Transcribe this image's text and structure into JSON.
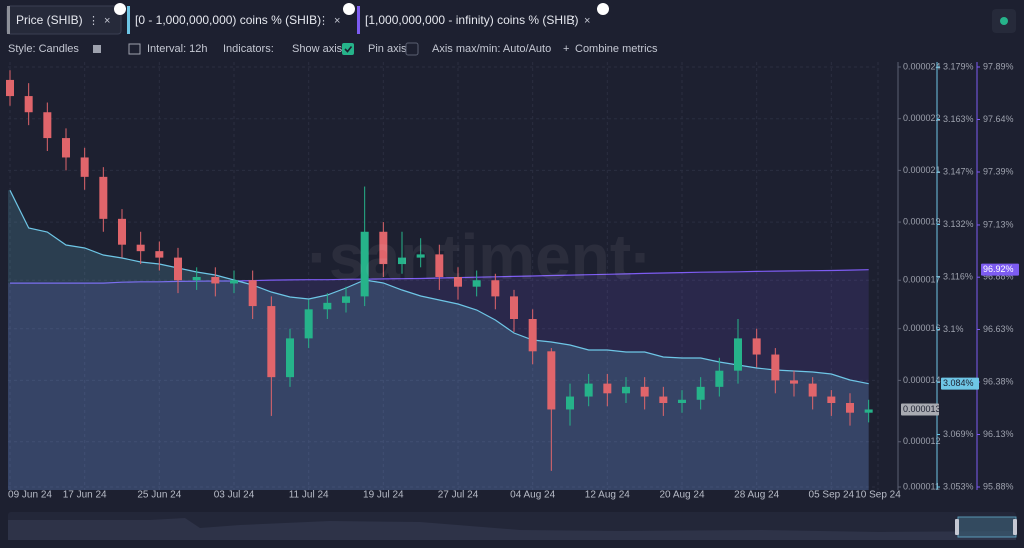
{
  "tabs_close": "×",
  "toolbar": {
    "style": "Style: Candles",
    "interval": "Interval: 12h",
    "indicators": "Indicators:",
    "show_axis": "Show axis",
    "pin_axis": "Pin axis",
    "axis_minmax": "Axis max/min: Auto/Auto",
    "combine": "Combine metrics"
  },
  "watermark": "·santiment·",
  "chart_data": {
    "type": "candlestick",
    "grid": true,
    "x": [
      "2024-06-09",
      "2024-06-11",
      "2024-06-13",
      "2024-06-15",
      "2024-06-17",
      "2024-06-19",
      "2024-06-21",
      "2024-06-23",
      "2024-06-25",
      "2024-06-27",
      "2024-06-29",
      "2024-07-01",
      "2024-07-03",
      "2024-07-05",
      "2024-07-07",
      "2024-07-09",
      "2024-07-11",
      "2024-07-13",
      "2024-07-15",
      "2024-07-17",
      "2024-07-19",
      "2024-07-21",
      "2024-07-23",
      "2024-07-25",
      "2024-07-27",
      "2024-07-29",
      "2024-07-31",
      "2024-08-02",
      "2024-08-04",
      "2024-08-06",
      "2024-08-08",
      "2024-08-10",
      "2024-08-12",
      "2024-08-14",
      "2024-08-16",
      "2024-08-18",
      "2024-08-20",
      "2024-08-22",
      "2024-08-24",
      "2024-08-26",
      "2024-08-28",
      "2024-08-30",
      "2024-09-01",
      "2024-09-03",
      "2024-09-05",
      "2024-09-07",
      "2024-09-09"
    ],
    "xlim": [
      "2024-06-09",
      "2024-09-10"
    ],
    "xticks": [
      {
        "value": "2024-06-09",
        "label": "09 Jun 24"
      },
      {
        "value": "2024-06-17",
        "label": "17 Jun 24"
      },
      {
        "value": "2024-06-25",
        "label": "25 Jun 24"
      },
      {
        "value": "2024-07-03",
        "label": "03 Jul 24"
      },
      {
        "value": "2024-07-11",
        "label": "11 Jul 24"
      },
      {
        "value": "2024-07-19",
        "label": "19 Jul 24"
      },
      {
        "value": "2024-07-27",
        "label": "27 Jul 24"
      },
      {
        "value": "2024-08-04",
        "label": "04 Aug 24"
      },
      {
        "value": "2024-08-12",
        "label": "12 Aug 24"
      },
      {
        "value": "2024-08-20",
        "label": "20 Aug 24"
      },
      {
        "value": "2024-08-28",
        "label": "28 Aug 24"
      },
      {
        "value": "2024-09-05",
        "label": "05 Sep 24"
      },
      {
        "value": "2024-09-10",
        "label": "10 Sep 24"
      }
    ],
    "ylim": [
      1.1e-05,
      2.4e-05
    ],
    "yticks": [
      2.4e-05,
      {
        "value": 2.24e-05,
        "label": "0.000022"
      },
      {
        "value": 2.08e-05,
        "label": "0.000021"
      },
      {
        "value": 1.92e-05,
        "label": "0.000019"
      },
      {
        "value": 1.74e-05,
        "label": "0.000017"
      },
      {
        "value": 1.59e-05,
        "label": "0.000016"
      },
      {
        "value": 1.43e-05,
        "label": "0.000014"
      },
      {
        "value": 1.24e-05,
        "label": "0.000012"
      },
      1.1e-05
    ],
    "y2lim": [
      3.053,
      3.179
    ],
    "y2ticks": [
      {
        "value": 3.179,
        "label": "3.179%"
      },
      {
        "value": 3.16325,
        "label": "3.163%"
      },
      {
        "value": 3.1475,
        "label": "3.147%"
      },
      {
        "value": 3.13175,
        "label": "3.132%"
      },
      {
        "value": 3.116,
        "label": "3.116%"
      },
      {
        "value": 3.10025,
        "label": "3.1%"
      },
      {
        "value": 3.0844,
        "label": "3.084%"
      },
      {
        "value": 3.06875,
        "label": "3.069%"
      },
      {
        "value": 3.053,
        "label": "3.053%"
      }
    ],
    "y3lim": [
      95.88,
      97.89
    ],
    "y3ticks": [
      {
        "value": 97.89,
        "label": "97.89%"
      },
      {
        "value": 97.63875,
        "label": "97.64%"
      },
      {
        "value": 97.3875,
        "label": "97.39%"
      },
      {
        "value": 97.134,
        "label": "97.13%"
      },
      {
        "value": 96.884,
        "label": "96.88%"
      },
      {
        "value": 96.63375,
        "label": "96.63%"
      },
      {
        "value": 96.3825,
        "label": "96.38%"
      },
      {
        "value": 96.13125,
        "label": "96.13%"
      },
      {
        "value": 95.88,
        "label": "95.88%"
      }
    ],
    "series": [
      {
        "name": "Price (SHIB)",
        "type": "candlestick",
        "color": "#8d9099",
        "up_color": "#26b38a",
        "down_color": "#e0656b",
        "open": [
          2.36e-05,
          2.31e-05,
          2.26e-05,
          2.18e-05,
          2.12e-05,
          2.06e-05,
          1.93e-05,
          1.85e-05,
          1.83e-05,
          1.81e-05,
          1.74e-05,
          1.75e-05,
          1.73e-05,
          1.74e-05,
          1.66e-05,
          1.44e-05,
          1.56e-05,
          1.65e-05,
          1.67e-05,
          1.69e-05,
          1.89e-05,
          1.79e-05,
          1.81e-05,
          1.82e-05,
          1.75e-05,
          1.72e-05,
          1.74e-05,
          1.69e-05,
          1.62e-05,
          1.52e-05,
          1.34e-05,
          1.38e-05,
          1.42e-05,
          1.39e-05,
          1.41e-05,
          1.38e-05,
          1.36e-05,
          1.37e-05,
          1.41e-05,
          1.46e-05,
          1.56e-05,
          1.51e-05,
          1.43e-05,
          1.42e-05,
          1.38e-05,
          1.36e-05,
          1.33e-05
        ],
        "high": [
          2.39e-05,
          2.35e-05,
          2.29e-05,
          2.21e-05,
          2.15e-05,
          2.09e-05,
          1.96e-05,
          1.89e-05,
          1.86e-05,
          1.84e-05,
          1.78e-05,
          1.78e-05,
          1.77e-05,
          1.77e-05,
          1.69e-05,
          1.59e-05,
          1.68e-05,
          1.7e-05,
          1.72e-05,
          2.03e-05,
          1.92e-05,
          1.89e-05,
          1.87e-05,
          1.85e-05,
          1.78e-05,
          1.77e-05,
          1.76e-05,
          1.71e-05,
          1.65e-05,
          1.53e-05,
          1.42e-05,
          1.45e-05,
          1.45e-05,
          1.44e-05,
          1.44e-05,
          1.41e-05,
          1.4e-05,
          1.44e-05,
          1.5e-05,
          1.62e-05,
          1.59e-05,
          1.53e-05,
          1.46e-05,
          1.44e-05,
          1.4e-05,
          1.39e-05,
          1.37e-05
        ],
        "low": [
          2.28e-05,
          2.22e-05,
          2.14e-05,
          2.08e-05,
          2.02e-05,
          1.89e-05,
          1.81e-05,
          1.79e-05,
          1.77e-05,
          1.7e-05,
          1.71e-05,
          1.69e-05,
          1.7e-05,
          1.62e-05,
          1.32e-05,
          1.41e-05,
          1.53e-05,
          1.62e-05,
          1.64e-05,
          1.66e-05,
          1.75e-05,
          1.76e-05,
          1.78e-05,
          1.71e-05,
          1.68e-05,
          1.69e-05,
          1.65e-05,
          1.58e-05,
          1.48e-05,
          1.15e-05,
          1.29e-05,
          1.35e-05,
          1.35e-05,
          1.36e-05,
          1.34e-05,
          1.32e-05,
          1.33e-05,
          1.34e-05,
          1.38e-05,
          1.42e-05,
          1.47e-05,
          1.39e-05,
          1.38e-05,
          1.34e-05,
          1.32e-05,
          1.29e-05,
          1.3e-05
        ],
        "close": [
          2.31e-05,
          2.26e-05,
          2.18e-05,
          2.12e-05,
          2.06e-05,
          1.93e-05,
          1.85e-05,
          1.83e-05,
          1.81e-05,
          1.74e-05,
          1.75e-05,
          1.73e-05,
          1.74e-05,
          1.66e-05,
          1.44e-05,
          1.56e-05,
          1.65e-05,
          1.67e-05,
          1.69e-05,
          1.89e-05,
          1.79e-05,
          1.81e-05,
          1.82e-05,
          1.75e-05,
          1.72e-05,
          1.74e-05,
          1.69e-05,
          1.62e-05,
          1.52e-05,
          1.34e-05,
          1.38e-05,
          1.42e-05,
          1.39e-05,
          1.41e-05,
          1.38e-05,
          1.36e-05,
          1.37e-05,
          1.41e-05,
          1.46e-05,
          1.56e-05,
          1.51e-05,
          1.43e-05,
          1.42e-05,
          1.38e-05,
          1.36e-05,
          1.33e-05,
          1.34e-05
        ],
        "value_labels": [
          null,
          null,
          null,
          null,
          null,
          null,
          null,
          null,
          null,
          null,
          null,
          null,
          null,
          null,
          null,
          null,
          null,
          null,
          null,
          null,
          null,
          null,
          null,
          null,
          null,
          null,
          null,
          null,
          null,
          null,
          null,
          null,
          null,
          null,
          null,
          null,
          null,
          null,
          null,
          null,
          null,
          null,
          null,
          null,
          null,
          null,
          "0.000013"
        ]
      },
      {
        "name": "[0 - 1,000,000,000) coins % (SHIB)",
        "type": "line",
        "axis": "y2",
        "fill": true,
        "color": "#6ec6e6",
        "values": [
          3.142,
          3.1307,
          3.1295,
          3.1256,
          3.1247,
          3.1226,
          3.1217,
          3.1205,
          3.1199,
          3.1187,
          3.1175,
          3.1166,
          3.1151,
          3.1136,
          3.1115,
          3.11,
          3.1094,
          3.1106,
          3.1127,
          3.1151,
          3.1142,
          3.1121,
          3.1103,
          3.1091,
          3.1079,
          3.1061,
          3.1031,
          3.0992,
          3.0971,
          3.0965,
          3.0956,
          3.0941,
          3.0941,
          3.0935,
          3.0935,
          3.092,
          3.0917,
          3.0917,
          3.0905,
          3.0896,
          3.0887,
          3.0881,
          3.0878,
          3.0875,
          3.0869,
          3.0851,
          3.084
        ],
        "value_labels": [
          null,
          null,
          null,
          null,
          null,
          null,
          null,
          null,
          null,
          null,
          null,
          null,
          null,
          null,
          null,
          null,
          null,
          null,
          null,
          null,
          null,
          null,
          null,
          null,
          null,
          null,
          null,
          null,
          null,
          null,
          null,
          null,
          null,
          null,
          null,
          null,
          null,
          null,
          null,
          null,
          null,
          null,
          null,
          null,
          null,
          null,
          "3.084%"
        ]
      },
      {
        "name": "[1,000,000,000 - infinity) coins % (SHIB)",
        "type": "line",
        "axis": "y3",
        "fill": true,
        "color": "#7d5cf2",
        "values": [
          96.856,
          96.856,
          96.856,
          96.856,
          96.856,
          96.856,
          96.86,
          96.862,
          96.862,
          96.864,
          96.865,
          96.866,
          96.866,
          96.868,
          96.87,
          96.871,
          96.872,
          96.872,
          96.874,
          96.875,
          96.876,
          96.877,
          96.878,
          96.88,
          96.882,
          96.884,
          96.886,
          96.888,
          96.89,
          96.892,
          96.894,
          96.896,
          96.898,
          96.9,
          96.902,
          96.904,
          96.906,
          96.908,
          96.909,
          96.91,
          96.912,
          96.913,
          96.914,
          96.915,
          96.916,
          96.918,
          96.92
        ],
        "value_labels": [
          null,
          null,
          null,
          null,
          null,
          null,
          null,
          null,
          null,
          null,
          null,
          null,
          null,
          null,
          null,
          null,
          null,
          null,
          null,
          null,
          null,
          null,
          null,
          null,
          null,
          null,
          null,
          null,
          null,
          null,
          null,
          null,
          null,
          null,
          null,
          null,
          null,
          null,
          null,
          null,
          null,
          null,
          null,
          null,
          null,
          null,
          "96.92%"
        ]
      }
    ]
  }
}
